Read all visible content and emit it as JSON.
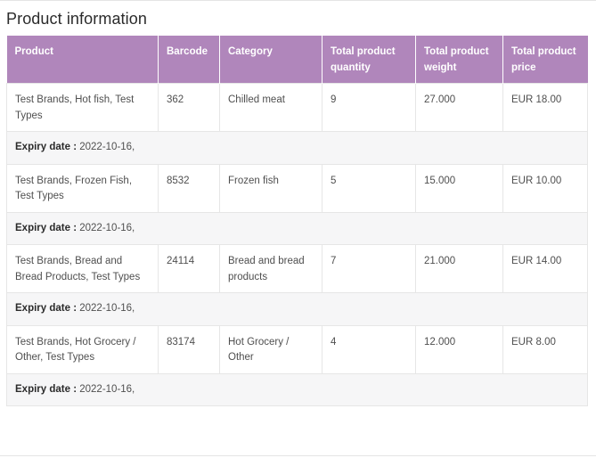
{
  "section": {
    "title": "Product information"
  },
  "table": {
    "headers": [
      "Product",
      "Barcode",
      "Category",
      "Total product quantity",
      "Total product weight",
      "Total product price"
    ],
    "rows": [
      {
        "product": "Test Brands, Hot fish, Test Types",
        "barcode": "362",
        "category": "Chilled meat",
        "quantity": "9",
        "weight": "27.000",
        "price": "EUR 18.00",
        "expiry_label": "Expiry date :",
        "expiry_value": "2022-10-16,"
      },
      {
        "product": "Test Brands, Frozen Fish, Test Types",
        "barcode": "8532",
        "category": "Frozen fish",
        "quantity": "5",
        "weight": "15.000",
        "price": "EUR 10.00",
        "expiry_label": "Expiry date :",
        "expiry_value": "2022-10-16,"
      },
      {
        "product": "Test Brands, Bread and Bread Products, Test Types",
        "barcode": "24114",
        "category": "Bread and bread products",
        "quantity": "7",
        "weight": "21.000",
        "price": "EUR 14.00",
        "expiry_label": "Expiry date :",
        "expiry_value": "2022-10-16,"
      },
      {
        "product": "Test Brands, Hot Grocery / Other, Test Types",
        "barcode": "83174",
        "category": "Hot Grocery / Other",
        "quantity": "4",
        "weight": "12.000",
        "price": "EUR 8.00",
        "expiry_label": "Expiry date :",
        "expiry_value": "2022-10-16,"
      }
    ]
  },
  "colors": {
    "header_bg": "#b086bb",
    "header_text": "#ffffff",
    "expiry_row_bg": "#f6f6f7",
    "border": "#e6e6e6"
  }
}
